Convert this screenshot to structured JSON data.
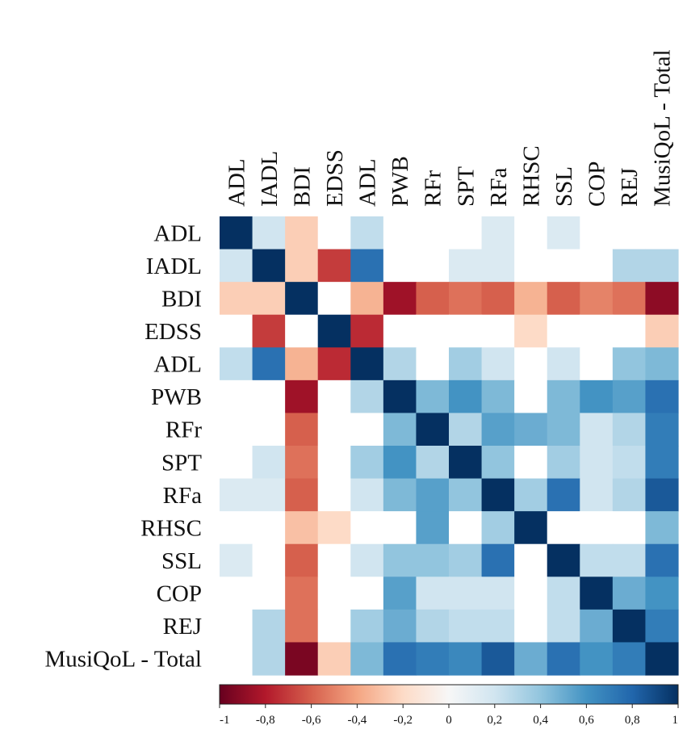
{
  "chart_data": {
    "type": "heatmap",
    "title": "",
    "xlabel": "",
    "ylabel": "",
    "categories": [
      "ADL",
      "IADL",
      "BDI",
      "EDSS",
      "ADL",
      "PWB",
      "RFr",
      "SPT",
      "RFa",
      "RHSC",
      "SSL",
      "COP",
      "REJ",
      "MusiQoL - Total"
    ],
    "rows": [
      "ADL",
      "IADL",
      "BDI",
      "EDSS",
      "ADL",
      "PWB",
      "RFr",
      "SPT",
      "RFa",
      "RHSC",
      "SSL",
      "COP",
      "REJ",
      "MusiQoL - Total"
    ],
    "values": [
      [
        1,
        0.2,
        -0.25,
        0,
        0.25,
        0,
        0,
        0,
        0.15,
        0,
        0.15,
        0,
        0,
        0
      ],
      [
        0.2,
        1,
        -0.25,
        -0.7,
        0.75,
        0,
        0,
        0.15,
        0.15,
        0,
        0,
        0,
        0.3,
        0.3
      ],
      [
        -0.25,
        -0.25,
        1,
        0,
        -0.35,
        -0.85,
        -0.6,
        -0.55,
        -0.6,
        -0.35,
        -0.6,
        -0.5,
        -0.55,
        -0.9
      ],
      [
        0,
        -0.7,
        0,
        1,
        -0.75,
        0,
        0,
        0,
        0,
        -0.2,
        0,
        0,
        0,
        -0.25
      ],
      [
        0.25,
        0.75,
        -0.35,
        -0.75,
        1,
        0.3,
        0,
        0.35,
        0.2,
        0,
        0.2,
        0,
        0.4,
        0.45
      ],
      [
        0,
        0,
        -0.85,
        0,
        0.3,
        1,
        0.45,
        0.6,
        0.45,
        0,
        0.45,
        0.6,
        0.55,
        0.75
      ],
      [
        0,
        0,
        -0.6,
        0,
        0,
        0.45,
        1,
        0.3,
        0.55,
        0.5,
        0.45,
        0.2,
        0.3,
        0.7
      ],
      [
        0,
        0.2,
        -0.55,
        0,
        0.35,
        0.6,
        0.3,
        1,
        0.4,
        0,
        0.35,
        0.2,
        0.25,
        0.7
      ],
      [
        0.15,
        0.15,
        -0.6,
        0,
        0.2,
        0.45,
        0.55,
        0.4,
        1,
        0.35,
        0.75,
        0.2,
        0.3,
        0.85
      ],
      [
        0,
        0,
        -0.3,
        -0.2,
        0,
        0,
        0.55,
        0,
        0.35,
        1,
        0,
        0,
        0,
        0.45
      ],
      [
        0.15,
        0,
        -0.6,
        0,
        0.2,
        0.4,
        0.4,
        0.35,
        0.75,
        0,
        1,
        0.25,
        0.25,
        0.75
      ],
      [
        0,
        0,
        -0.55,
        0,
        0,
        0.55,
        0.2,
        0.2,
        0.2,
        0,
        0.25,
        1,
        0.5,
        0.6
      ],
      [
        0,
        0.3,
        -0.55,
        0,
        0.35,
        0.5,
        0.3,
        0.25,
        0.25,
        0,
        0.25,
        0.5,
        1,
        0.7
      ],
      [
        0,
        0.3,
        -0.95,
        -0.25,
        0.45,
        0.75,
        0.7,
        0.65,
        0.85,
        0.5,
        0.75,
        0.6,
        0.7,
        1
      ]
    ],
    "scale": {
      "min": -1,
      "max": 1
    },
    "colorbar_ticks": [
      "-1",
      "-0,8",
      "-0,6",
      "-0,4",
      "-0,2",
      "0",
      "0,2",
      "0,4",
      "0,6",
      "0,8",
      "1"
    ],
    "colorbar_placement": "bottom",
    "colors": {
      "negative_end": "#67001f",
      "neutral": "#f7f7f7",
      "positive_end": "#053061"
    }
  }
}
